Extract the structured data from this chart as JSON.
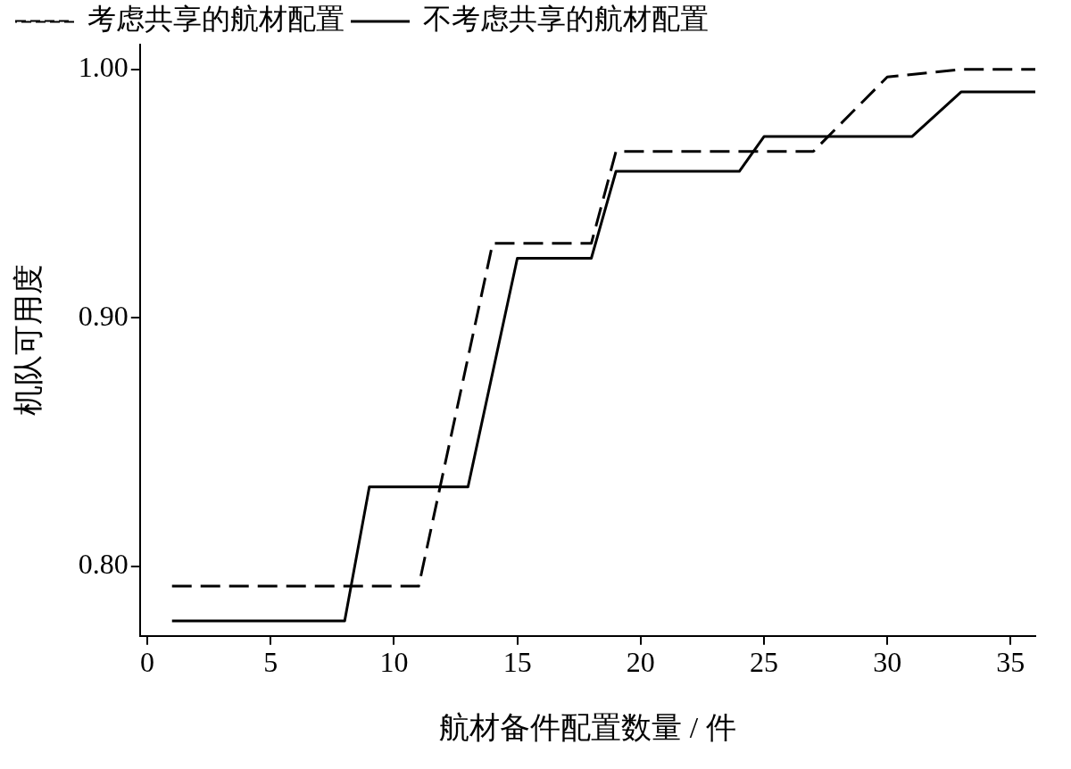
{
  "chart_data": {
    "type": "line",
    "xlabel": "航材备件配置数量 / 件",
    "ylabel": "机队可用度",
    "xlim": [
      -0.3,
      36
    ],
    "ylim": [
      0.772,
      1.01
    ],
    "xticks": [
      0,
      5,
      10,
      15,
      20,
      25,
      30,
      35
    ],
    "yticks": [
      {
        "value": 0.8,
        "label": "0.80"
      },
      {
        "value": 0.9,
        "label": "0.90"
      },
      {
        "value": 1.0,
        "label": "1.00"
      }
    ],
    "grid": false,
    "legend": "top left",
    "marker": "none",
    "series": [
      {
        "name": "考虑共享的航材配置",
        "color": "#000000",
        "line_style": "dashed",
        "x": [
          1,
          11,
          14,
          18,
          19,
          27,
          30,
          33,
          36
        ],
        "values": [
          0.792,
          0.792,
          0.93,
          0.93,
          0.967,
          0.967,
          0.997,
          1.0,
          1.0
        ]
      },
      {
        "name": "不考虑共享的航材配置",
        "color": "#000000",
        "line_style": "solid",
        "x": [
          1,
          8,
          9,
          13,
          15,
          18,
          19,
          24,
          25,
          31,
          33,
          36
        ],
        "values": [
          0.778,
          0.778,
          0.832,
          0.832,
          0.924,
          0.924,
          0.959,
          0.959,
          0.973,
          0.973,
          0.991,
          0.991
        ]
      }
    ]
  }
}
